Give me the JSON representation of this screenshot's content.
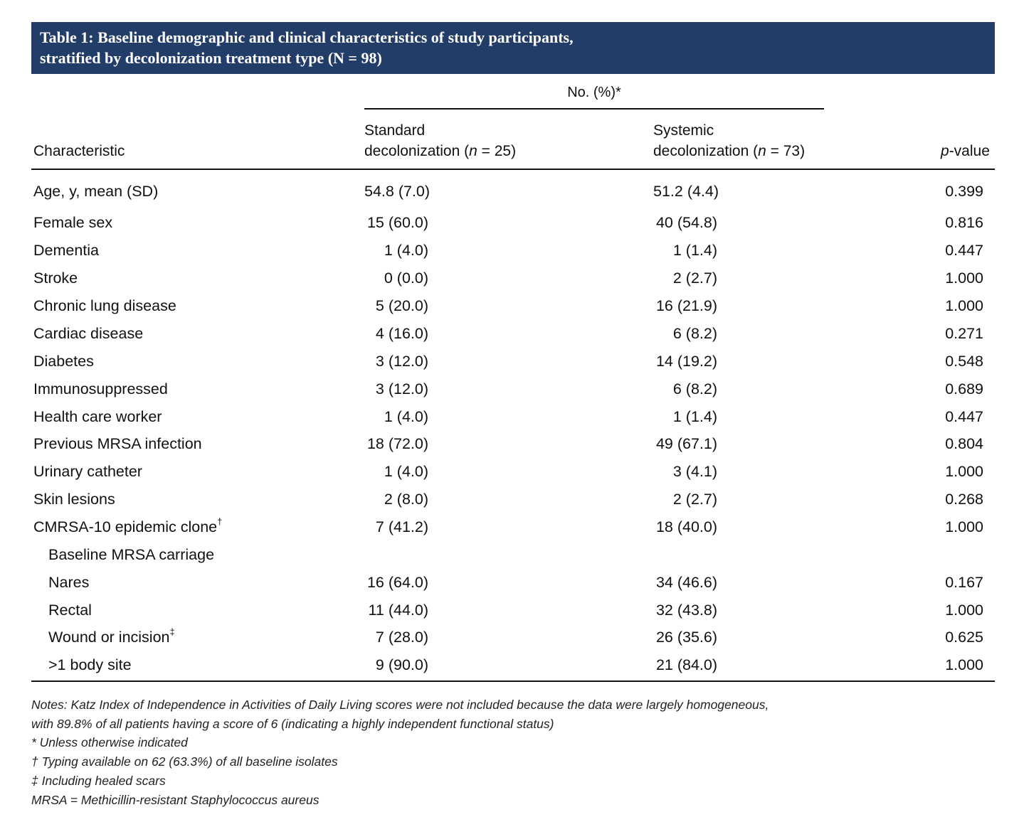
{
  "title": {
    "line1": "Table 1: Baseline demographic and clinical characteristics of study participants,",
    "line2": "stratified by decolonization treatment type (N = 98)"
  },
  "header": {
    "group": "No. (%)*",
    "characteristic": "Characteristic",
    "col1_line1": "Standard",
    "col1_line2_prefix": "decolonization (",
    "col1_n_label": "n",
    "col1_line2_suffix": " = 25)",
    "col2_line1": "Systemic",
    "col2_line2_prefix": "decolonization (",
    "col2_n_label": "n",
    "col2_line2_suffix": " = 73)",
    "pvalue_italic": "p",
    "pvalue_suffix": "-value"
  },
  "rows": [
    {
      "label": "Age, y, mean (SD)",
      "sup": "",
      "standard": "54.8 (7.0)",
      "systemic": "51.2 (4.4)",
      "p": "0.399"
    },
    {
      "label": "Female sex",
      "sup": "",
      "standard": "15 (60.0)",
      "systemic": "40 (54.8)",
      "p": "0.816"
    },
    {
      "label": "Dementia",
      "sup": "",
      "standard": "1 (4.0)",
      "systemic": "1 (1.4)",
      "p": "0.447"
    },
    {
      "label": "Stroke",
      "sup": "",
      "standard": "0 (0.0)",
      "systemic": "2 (2.7)",
      "p": "1.000"
    },
    {
      "label": "Chronic lung disease",
      "sup": "",
      "standard": "5 (20.0)",
      "systemic": "16 (21.9)",
      "p": "1.000"
    },
    {
      "label": "Cardiac disease",
      "sup": "",
      "standard": "4 (16.0)",
      "systemic": "6 (8.2)",
      "p": "0.271"
    },
    {
      "label": "Diabetes",
      "sup": "",
      "standard": "3 (12.0)",
      "systemic": "14 (19.2)",
      "p": "0.548"
    },
    {
      "label": "Immunosuppressed",
      "sup": "",
      "standard": "3 (12.0)",
      "systemic": "6 (8.2)",
      "p": "0.689"
    },
    {
      "label": "Health care worker",
      "sup": "",
      "standard": "1 (4.0)",
      "systemic": "1 (1.4)",
      "p": "0.447"
    },
    {
      "label": "Previous MRSA infection",
      "sup": "",
      "standard": "18 (72.0)",
      "systemic": "49 (67.1)",
      "p": "0.804"
    },
    {
      "label": "Urinary catheter",
      "sup": "",
      "standard": "1 (4.0)",
      "systemic": "3 (4.1)",
      "p": "1.000"
    },
    {
      "label": "Skin lesions",
      "sup": "",
      "standard": "2 (8.0)",
      "systemic": "2 (2.7)",
      "p": "0.268"
    },
    {
      "label": "CMRSA-10 epidemic clone",
      "sup": "†",
      "standard": "7 (41.2)",
      "systemic": "18 (40.0)",
      "p": "1.000"
    },
    {
      "label": "Baseline MRSA carriage",
      "sup": "",
      "standard": "",
      "systemic": "",
      "p": "",
      "indent": true
    },
    {
      "label": "Nares",
      "sup": "",
      "standard": "16 (64.0)",
      "systemic": "34 (46.6)",
      "p": "0.167",
      "indent": true
    },
    {
      "label": "Rectal",
      "sup": "",
      "standard": "11 (44.0)",
      "systemic": "32 (43.8)",
      "p": "1.000",
      "indent": true
    },
    {
      "label": "Wound or incision",
      "sup": "‡",
      "standard": "7 (28.0)",
      "systemic": "26 (35.6)",
      "p": "0.625",
      "indent": true
    },
    {
      "label": ">1 body site",
      "sup": "",
      "standard": "9 (90.0)",
      "systemic": "21 (84.0)",
      "p": "1.000",
      "indent": true
    }
  ],
  "notes": [
    "Notes: Katz Index of Independence in Activities of Daily Living scores were not included because the data were largely homogeneous,",
    "with 89.8% of all patients having a score of 6 (indicating a highly independent functional status)",
    "* Unless otherwise indicated",
    "† Typing available on 62 (63.3%) of all baseline isolates",
    "‡ Including healed scars",
    "MRSA = Methicillin-resistant Staphylococcus aureus"
  ],
  "colors": {
    "title_bar": "#233d69",
    "title_text": "#ffffff",
    "text": "#111111"
  }
}
